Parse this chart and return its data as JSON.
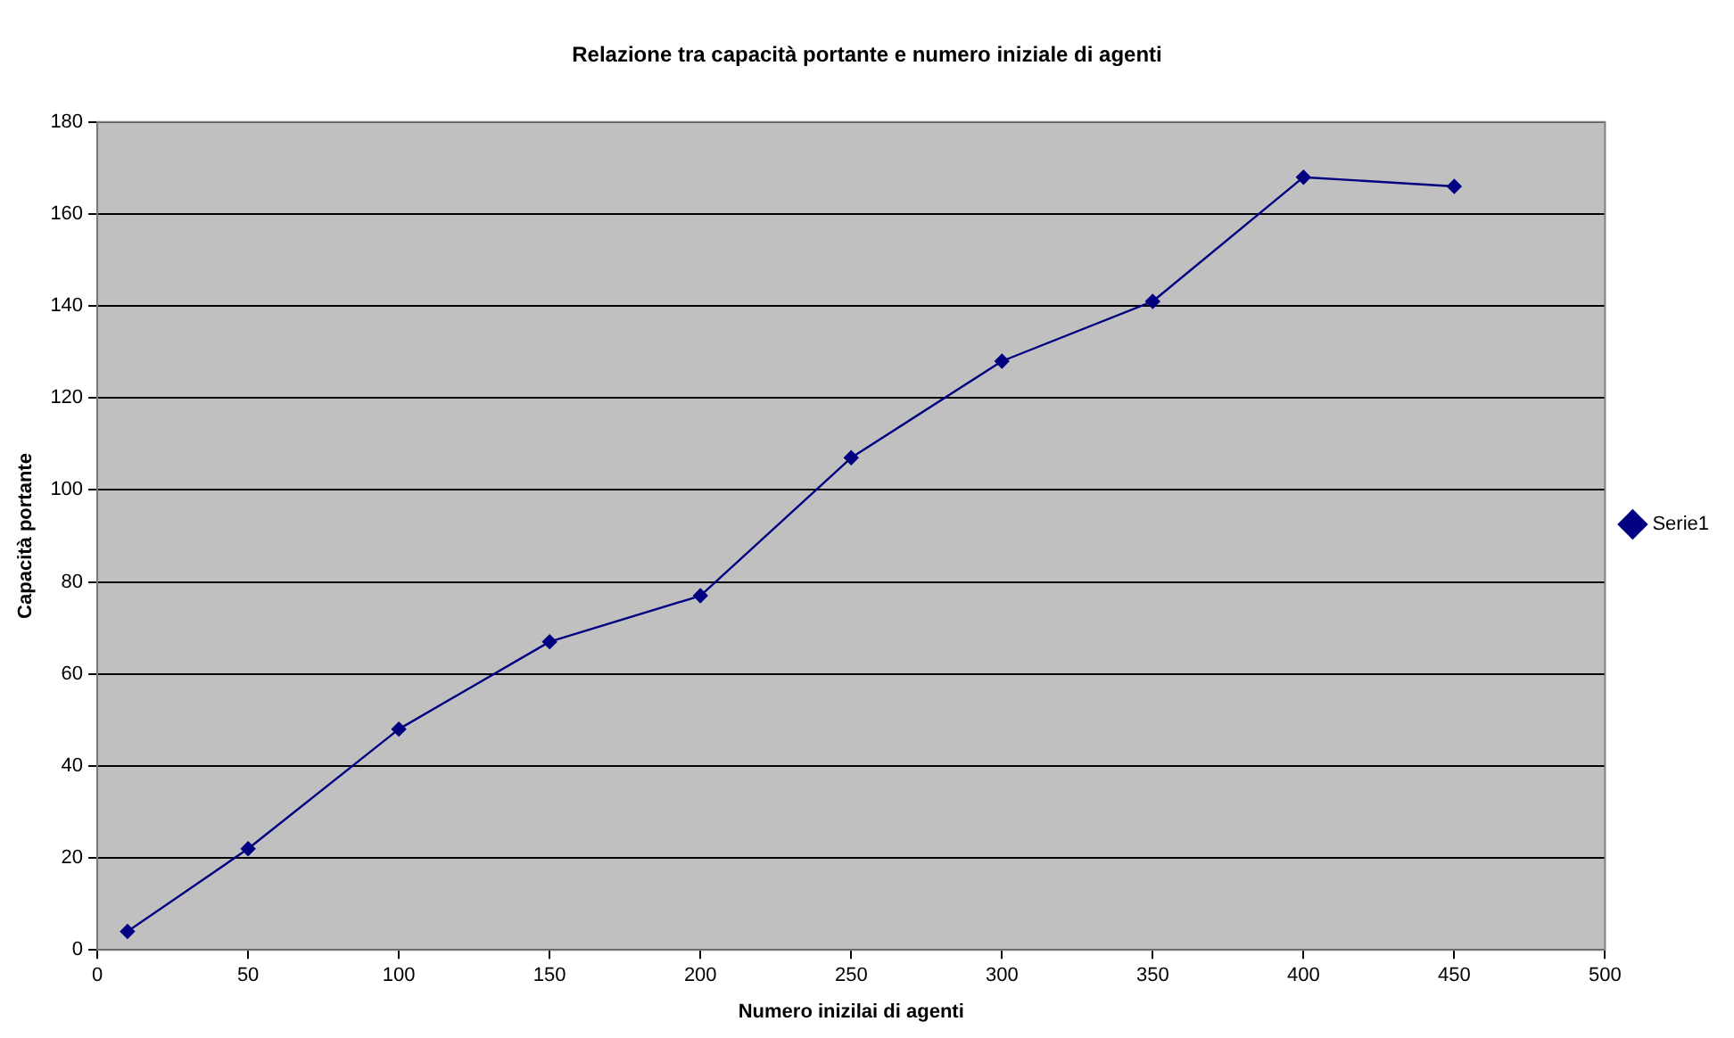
{
  "chart_data": {
    "type": "line",
    "title": "Relazione tra capacità portante e numero iniziale di agenti",
    "xlabel": "Numero inizilai di agenti",
    "ylabel": "Capacità portante",
    "x": [
      10,
      50,
      100,
      150,
      200,
      250,
      300,
      350,
      400,
      450
    ],
    "series": [
      {
        "name": "Serie1",
        "color": "#000080",
        "values": [
          4,
          22,
          48,
          67,
          77,
          107,
          128,
          141,
          168,
          166
        ]
      }
    ],
    "xlim": [
      0,
      500
    ],
    "xticks": [
      0,
      50,
      100,
      150,
      200,
      250,
      300,
      350,
      400,
      450,
      500
    ],
    "ylim": [
      0,
      180
    ],
    "yticks": [
      0,
      20,
      40,
      60,
      80,
      100,
      120,
      140,
      160,
      180
    ],
    "grid": "y",
    "legend": "right",
    "marker": "diamond",
    "line_style": "solid"
  }
}
